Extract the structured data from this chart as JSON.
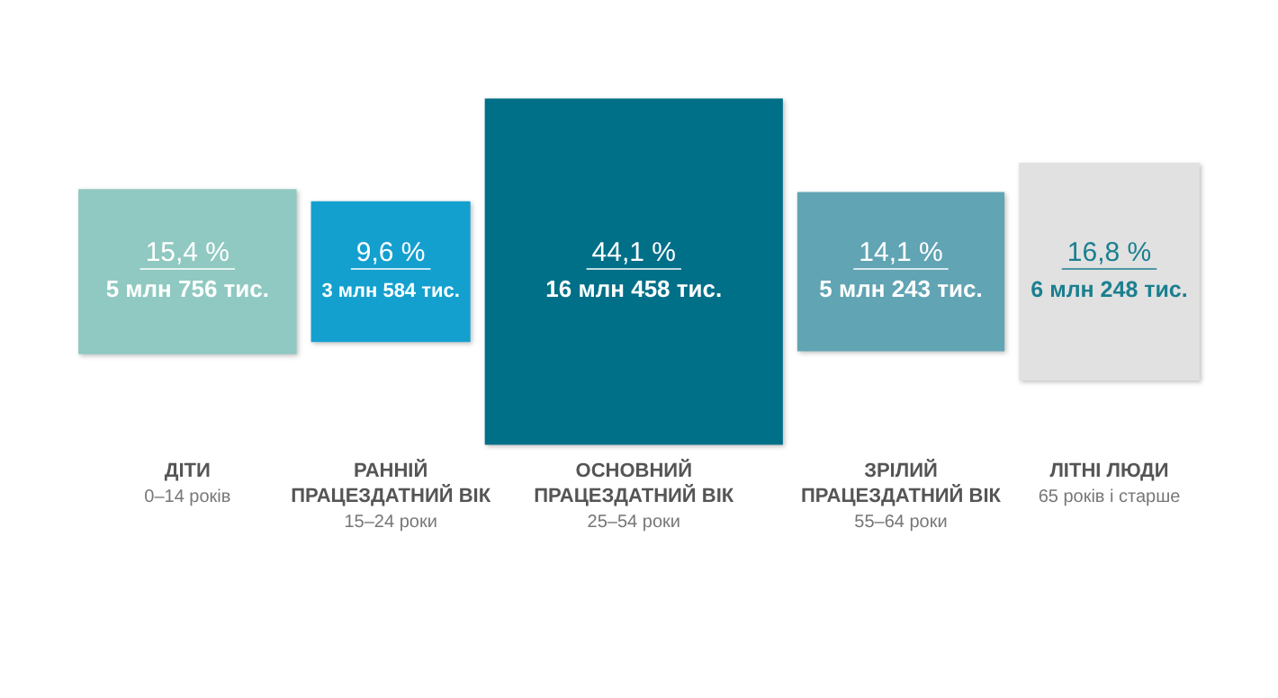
{
  "chart_data": {
    "type": "other",
    "categories": [
      "ДІТИ\n0–14 років",
      "РАННІЙ\nПРАЦЕЗДАТНИЙ ВІК\n15–24 роки",
      "ОСНОВНИЙ\nПРАЦЕЗДАТНИЙ ВІК\n25–54 роки",
      "ЗРІЛИЙ\nПРАЦЕЗДАТНИЙ ВІК\n55–64 роки",
      "ЛІТНІ ЛЮДИ\n65 років і старше"
    ],
    "values": [
      15.4,
      9.6,
      44.1,
      14.1,
      16.8
    ],
    "value_labels": [
      "15,4 %",
      "9,6 %",
      "44,1 %",
      "14,1 %",
      "16,8 %"
    ],
    "colors": [
      "#8fc9c1",
      "#14a0cf",
      "#006f88",
      "#61a4b4",
      "#e1e1e1"
    ],
    "annotations": [
      "5 млн 756 тис.",
      "3 млн 584 тис.",
      "16 млн 458 тис.",
      "5 млн 243 тис.",
      "6 млн 248 тис."
    ]
  }
}
